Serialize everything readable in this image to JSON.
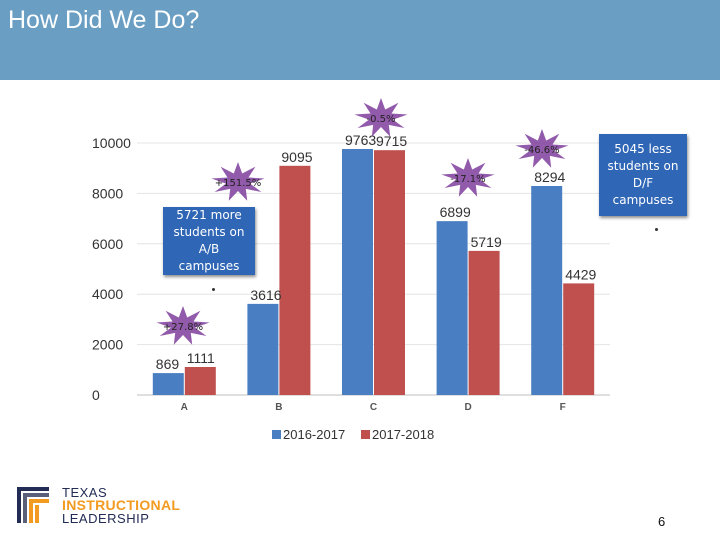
{
  "title": "How Did We Do?",
  "page_number": "6",
  "logo": {
    "line1": "TEXAS",
    "line2": "INSTRUCTIONAL",
    "line3": "LEADERSHIP"
  },
  "callouts": {
    "ab": "5721 more students on A/B campuses",
    "df": "5045 less students on D/F campuses"
  },
  "colors": {
    "header": "#6a9ec3",
    "series1": "#4a7ec2",
    "series2": "#c0504d",
    "burst": "#7f3d9b",
    "callout": "#2f66b5",
    "logo_navy": "#222c55",
    "logo_orange": "#f39a21"
  },
  "chart_data": {
    "type": "bar",
    "categories": [
      "A",
      "B",
      "C",
      "D",
      "F"
    ],
    "series": [
      {
        "name": "2016-2017",
        "values": [
          869,
          3616,
          9763,
          6899,
          8294
        ]
      },
      {
        "name": "2017-2018",
        "values": [
          1111,
          9095,
          9715,
          5719,
          4429
        ]
      }
    ],
    "ylim": [
      0,
      10000
    ],
    "yticks": [
      "0",
      "2000",
      "4000",
      "6000",
      "8000",
      "10000"
    ],
    "legend_position": "bottom",
    "change_labels": [
      {
        "category": "A",
        "label": "+27.8%"
      },
      {
        "category": "B",
        "label": "+151.5%"
      },
      {
        "category": "C",
        "label": "-0.5%"
      },
      {
        "category": "D",
        "label": "-17.1%"
      },
      {
        "category": "F",
        "label": "-46.6%"
      }
    ]
  }
}
